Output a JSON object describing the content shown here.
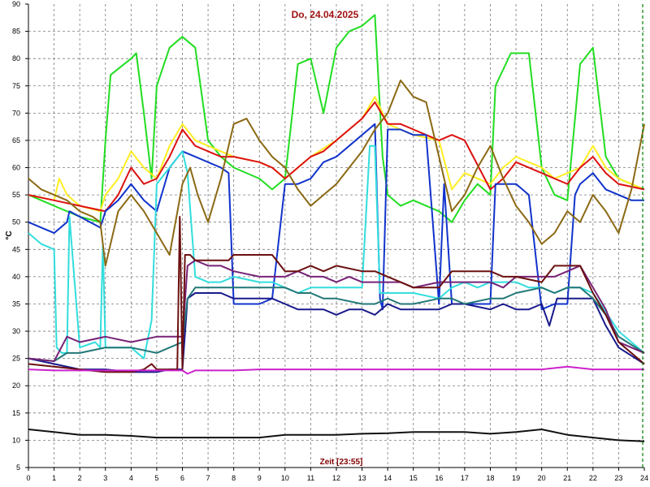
{
  "chart_data": {
    "type": "line",
    "title": "Do, 24.04.2025",
    "xlabel": "Zeit [23:55]",
    "ylabel": "°C",
    "xlim": [
      0,
      24
    ],
    "ylim": [
      5,
      90
    ],
    "xticks": [
      0,
      1,
      2,
      3,
      4,
      5,
      6,
      7,
      8,
      9,
      10,
      11,
      12,
      13,
      14,
      15,
      16,
      17,
      18,
      19,
      20,
      21,
      22,
      23,
      24
    ],
    "yticks": [
      5,
      10,
      15,
      20,
      25,
      30,
      35,
      40,
      45,
      50,
      55,
      60,
      65,
      70,
      75,
      80,
      85,
      90
    ],
    "grid": true,
    "legend": "none",
    "colors": {
      "title": "#a01010",
      "xlabel": "#800000",
      "grid": "#7a7a7a",
      "axis": "#000000",
      "marker_line": "#008000"
    },
    "series": [
      {
        "color": "#22dd22",
        "x": [
          0,
          1,
          2,
          2.8,
          3,
          3.2,
          4,
          4.2,
          4.5,
          4.8,
          5,
          5.5,
          6,
          6.5,
          7,
          7.5,
          8,
          9,
          9.5,
          10,
          10.5,
          11,
          11.5,
          12,
          12.5,
          13,
          13.5,
          13.8,
          14,
          14.5,
          15,
          15.5,
          16,
          16.5,
          17,
          17.5,
          18,
          18.2,
          18.8,
          19.5,
          20,
          20.5,
          21,
          21.5,
          22,
          22.5,
          23,
          23.5,
          24
        ],
        "y": [
          55,
          53,
          51,
          50,
          65,
          77,
          80,
          81,
          70,
          58,
          75,
          82,
          84,
          82,
          65,
          62,
          60,
          58,
          56,
          58,
          79,
          80,
          70,
          82,
          85,
          86,
          88,
          62,
          55,
          53,
          54,
          53,
          52,
          50,
          54,
          57,
          55,
          75,
          81,
          81,
          60,
          55,
          54,
          79,
          82,
          62,
          58,
          57,
          56
        ]
      },
      {
        "color": "#ffee22",
        "x": [
          0,
          1,
          1.2,
          1.5,
          2,
          2.8,
          3,
          3.5,
          4,
          4.5,
          5,
          5.5,
          6,
          6.5,
          7,
          7.5,
          8,
          9,
          9.5,
          10,
          10.5,
          11,
          12,
          13,
          13.5,
          14,
          14.5,
          15,
          16,
          16.5,
          17,
          18,
          18.5,
          19,
          20,
          20.5,
          21,
          21.5,
          22,
          22.5,
          23,
          23.5,
          24
        ],
        "y": [
          55,
          54,
          58,
          55,
          53,
          52,
          55,
          58,
          63,
          60,
          58,
          64,
          68,
          65,
          64,
          63,
          62,
          61,
          60,
          58,
          60,
          62,
          65,
          69,
          73,
          68,
          67,
          66,
          65,
          56,
          59,
          57,
          60,
          62,
          60,
          58,
          59,
          60,
          64,
          60,
          58,
          57,
          56
        ]
      },
      {
        "color": "#dd1111",
        "x": [
          0,
          1,
          2,
          3,
          3.5,
          4,
          4.5,
          5,
          5.5,
          6,
          6.5,
          7,
          7.5,
          8,
          9,
          9.5,
          10,
          10.5,
          11,
          11.5,
          12,
          13,
          13.5,
          14,
          14.5,
          15,
          15.5,
          16,
          16.5,
          17,
          18,
          18.5,
          19,
          20,
          20.5,
          21,
          21.5,
          22,
          22.5,
          23,
          24
        ],
        "y": [
          55,
          54,
          53,
          52,
          55,
          60,
          57,
          58,
          62,
          67,
          64,
          63,
          62,
          62,
          61,
          60,
          58,
          60,
          62,
          63,
          65,
          69,
          72,
          68,
          68,
          67,
          66,
          65,
          66,
          65,
          56,
          58,
          61,
          59,
          58,
          57,
          60,
          62,
          59,
          57,
          56
        ]
      },
      {
        "color": "#1133cc",
        "x": [
          0,
          0.5,
          1,
          1.5,
          1.6,
          2,
          2.8,
          3,
          3.5,
          4,
          4.5,
          5,
          5.5,
          6,
          6.5,
          7,
          7.5,
          7.8,
          8,
          9,
          9.5,
          10,
          10.5,
          11,
          11.5,
          12,
          12.5,
          13,
          13.5,
          13.7,
          13.8,
          14,
          14.5,
          15,
          15.5,
          16,
          16.2,
          16.5,
          17,
          17.5,
          18,
          18.2,
          18.5,
          19,
          19.5,
          20,
          20.5,
          21,
          21.3,
          21.5,
          22,
          22.5,
          23,
          23.5,
          24
        ],
        "y": [
          50,
          49,
          48,
          50,
          52,
          51,
          49,
          52,
          54,
          57,
          54,
          52,
          60,
          63,
          62,
          61,
          60,
          59,
          35,
          35,
          36,
          57,
          57,
          58,
          61,
          62,
          64,
          66,
          68,
          36,
          34,
          67,
          67,
          66,
          66,
          35,
          57,
          35,
          35,
          35,
          35,
          57,
          57,
          57,
          55,
          34,
          35,
          35,
          55,
          57,
          59,
          56,
          55,
          54,
          54
        ]
      },
      {
        "color": "#33dddd",
        "x": [
          0,
          0.5,
          1,
          1.1,
          1.3,
          1.5,
          1.6,
          2,
          2.6,
          2.8,
          2.9,
          3,
          3.5,
          4,
          4.5,
          4.8,
          5,
          5.5,
          6,
          6.2,
          6.5,
          7,
          7.5,
          8,
          9,
          9.5,
          10,
          10.5,
          11,
          11.5,
          12,
          13,
          13.3,
          13.5,
          13.7,
          14,
          14.5,
          15,
          16,
          16.5,
          17,
          17.5,
          18,
          18.5,
          19,
          19.5,
          20,
          20.5,
          21,
          21.5,
          22,
          23,
          24
        ],
        "y": [
          48,
          46,
          45,
          27,
          26,
          26,
          51,
          27,
          28,
          27,
          46,
          27,
          27,
          27,
          25,
          32,
          57,
          60,
          63,
          59,
          40,
          39,
          39,
          40,
          39,
          39,
          38,
          37,
          38,
          38,
          38,
          38,
          64,
          64,
          37,
          37,
          37,
          37,
          36,
          38,
          39,
          38,
          39,
          39,
          39,
          38,
          38,
          37,
          38,
          38,
          37,
          30,
          26
        ]
      },
      {
        "color": "#8b6914",
        "x": [
          0,
          0.5,
          1,
          1.5,
          2,
          2.5,
          2.8,
          3,
          3.5,
          4,
          4.5,
          5,
          5.5,
          6,
          6.3,
          6.6,
          7,
          7.5,
          8,
          8.5,
          9,
          9.5,
          10,
          10.5,
          11,
          11.5,
          12,
          12.5,
          13,
          13.5,
          14,
          14.5,
          15,
          15.5,
          16,
          16.5,
          17,
          17.5,
          18,
          18.5,
          19,
          19.5,
          20,
          20.5,
          21,
          21.5,
          22,
          22.5,
          23,
          23.5,
          24
        ],
        "y": [
          58,
          56,
          55,
          54,
          52,
          51,
          50,
          42,
          52,
          55,
          52,
          48,
          44,
          57,
          60,
          55,
          50,
          58,
          68,
          69,
          65,
          62,
          60,
          56,
          53,
          55,
          57,
          60,
          63,
          67,
          70,
          76,
          73,
          72,
          62,
          52,
          55,
          60,
          64,
          58,
          53,
          50,
          46,
          48,
          52,
          50,
          55,
          52,
          48,
          56,
          68
        ]
      },
      {
        "color": "#1a1a8c",
        "x": [
          0,
          1,
          2,
          3,
          4,
          5,
          5.5,
          6,
          6.2,
          6.5,
          7,
          7.5,
          8,
          9,
          9.5,
          10,
          10.5,
          11,
          11.5,
          12,
          12.5,
          13,
          13.5,
          14,
          14.5,
          15,
          15.5,
          16,
          16.5,
          17,
          18,
          18.5,
          19,
          19.5,
          20,
          20.3,
          20.6,
          21,
          21.5,
          22,
          22.5,
          23,
          24
        ],
        "y": [
          25,
          24,
          23,
          23,
          22.5,
          22.5,
          23,
          23,
          36,
          37,
          37,
          37,
          36,
          36,
          36,
          35,
          34,
          34,
          34,
          33,
          34,
          34,
          33,
          35,
          34,
          34,
          34,
          34,
          35,
          35,
          34,
          35,
          34,
          34,
          35,
          31,
          36,
          36,
          36,
          36,
          31,
          27,
          24
        ]
      },
      {
        "color": "#227777",
        "x": [
          0,
          1,
          1.5,
          2,
          3,
          4,
          5,
          5.5,
          6,
          6.2,
          6.5,
          7,
          7.5,
          8,
          9,
          9.5,
          10,
          10.5,
          11,
          11.5,
          12,
          13,
          13.5,
          14,
          14.5,
          15,
          16,
          16.5,
          17,
          18,
          18.5,
          19,
          20,
          20.5,
          21,
          21.5,
          22,
          22.5,
          23,
          24
        ],
        "y": [
          25,
          24.5,
          26,
          26,
          27,
          27,
          26,
          27,
          28,
          36,
          38,
          38,
          38,
          38,
          38,
          38,
          38,
          37,
          37,
          36,
          36,
          35,
          35,
          36,
          35,
          35,
          36,
          36,
          35,
          36,
          36,
          37,
          38,
          37,
          38,
          38,
          36,
          33,
          29,
          26
        ]
      },
      {
        "color": "#772277",
        "x": [
          0,
          1,
          1.5,
          2,
          3,
          4,
          5,
          5.5,
          6,
          6.2,
          6.5,
          7,
          7.5,
          8,
          9,
          9.5,
          10,
          10.5,
          11,
          11.5,
          12,
          12.5,
          13,
          13.5,
          14,
          14.5,
          15,
          16,
          16.5,
          17,
          18,
          18.5,
          19,
          20,
          20.5,
          21,
          21.5,
          22,
          22.5,
          23,
          24
        ],
        "y": [
          25,
          24.5,
          29,
          28,
          29,
          28,
          29,
          29,
          29,
          42,
          43,
          42,
          42,
          41,
          40,
          40,
          40,
          41,
          40,
          40,
          39,
          40,
          39,
          39,
          39,
          39,
          38,
          39,
          39,
          39,
          39,
          38,
          40,
          40,
          40,
          41,
          42,
          38,
          34,
          28,
          26
        ]
      },
      {
        "color": "#6b1010",
        "x": [
          0,
          1,
          2,
          3,
          4,
          4.5,
          4.8,
          5,
          5.5,
          5.8,
          5.9,
          6,
          6.1,
          6.3,
          6.5,
          7,
          7.5,
          7.8,
          8,
          9,
          9.5,
          10,
          10.5,
          11,
          11.5,
          12,
          13,
          13.5,
          14,
          14.5,
          15,
          16,
          16.5,
          17,
          18,
          18.5,
          19,
          20,
          20.5,
          21,
          21.5,
          22,
          22.5,
          23,
          24
        ],
        "y": [
          24,
          23.5,
          23,
          22.5,
          22.5,
          23,
          24,
          23,
          23,
          23,
          51,
          23,
          44,
          44,
          43,
          43,
          43,
          43,
          44,
          44,
          44,
          41,
          41,
          42,
          41,
          42,
          41,
          41,
          40,
          39,
          38,
          38,
          41,
          41,
          41,
          40,
          40,
          39,
          42,
          42,
          42,
          37,
          33,
          28,
          24
        ]
      },
      {
        "color": "#cc22cc",
        "x": [
          0,
          1,
          2,
          3,
          4,
          5,
          5.8,
          6,
          6.2,
          6.5,
          7,
          8,
          9,
          10,
          11,
          12,
          13,
          14,
          15,
          16,
          17,
          18,
          19,
          20,
          21,
          22,
          23,
          24
        ],
        "y": [
          23,
          22.8,
          22.8,
          22.8,
          22.8,
          22.8,
          22.8,
          22.8,
          22.2,
          22.8,
          22.8,
          22.8,
          23,
          23,
          23,
          23,
          23,
          23,
          23,
          23,
          23,
          23,
          23,
          23,
          23.5,
          23,
          23,
          23
        ]
      },
      {
        "color": "#111111",
        "x": [
          0,
          1,
          2,
          3,
          4,
          5,
          6,
          7,
          8,
          9,
          10,
          11,
          12,
          13,
          14,
          15,
          16,
          17,
          18,
          19,
          20,
          21,
          22,
          23,
          24
        ],
        "y": [
          12,
          11.5,
          11,
          11,
          10.8,
          10.5,
          10.5,
          10.5,
          10.5,
          10.5,
          11,
          11,
          11,
          11.2,
          11.3,
          11.5,
          11.5,
          11.5,
          11.2,
          11.5,
          12,
          11,
          10.5,
          10,
          9.8
        ]
      }
    ]
  }
}
